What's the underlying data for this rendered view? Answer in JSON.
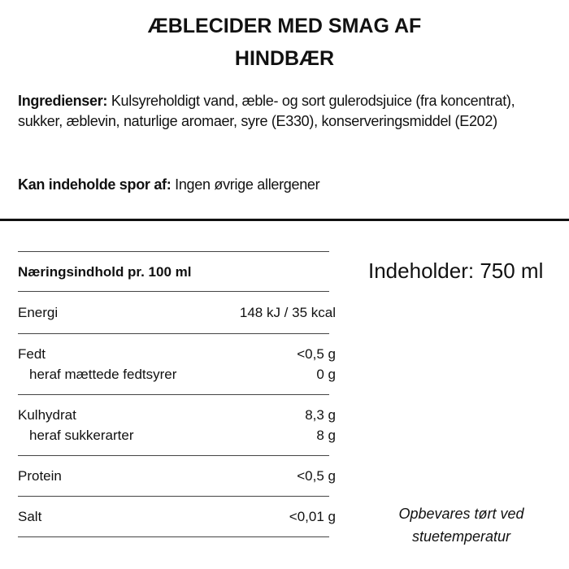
{
  "title": "ÆBLECIDER MED SMAG AF HINDBÆR",
  "ingredients": {
    "label": "Ingredienser:",
    "text": " Kulsyreholdigt vand, æble- og sort gulerodsjuice (fra koncentrat), sukker, æblevin, naturlige aromaer, syre (E330), konserveringsmiddel (E202)"
  },
  "allergens": {
    "label": "Kan indeholde spor af:",
    "text": " Ingen øvrige allergener"
  },
  "nutrition": {
    "header": "Næringsindhold pr. 100 ml",
    "rows": [
      {
        "label": "Energi",
        "value": "148 kJ / 35 kcal"
      },
      {
        "label": "Fedt",
        "value": "<0,5 g"
      },
      {
        "label": "heraf mættede fedtsyrer",
        "value": "0 g"
      },
      {
        "label": "Kulhydrat",
        "value": "8,3 g"
      },
      {
        "label": "heraf sukkerarter",
        "value": "8 g"
      },
      {
        "label": "Protein",
        "value": "<0,5 g"
      },
      {
        "label": "Salt",
        "value": "<0,01 g"
      }
    ]
  },
  "contents": "Indeholder: 750 ml",
  "storage": "Opbevares tørt ved stuetemperatur"
}
